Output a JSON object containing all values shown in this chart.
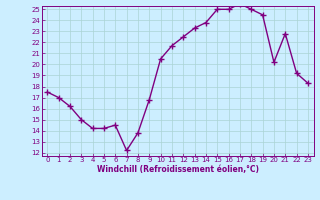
{
  "x": [
    0,
    1,
    2,
    3,
    4,
    5,
    6,
    7,
    8,
    9,
    10,
    11,
    12,
    13,
    14,
    15,
    16,
    17,
    18,
    19,
    20,
    21,
    22,
    23
  ],
  "y": [
    17.5,
    17.0,
    16.2,
    15.0,
    14.2,
    14.2,
    14.5,
    12.2,
    13.8,
    16.8,
    20.5,
    21.7,
    22.5,
    23.3,
    23.8,
    25.0,
    25.0,
    25.5,
    25.0,
    24.5,
    20.2,
    22.8,
    19.2,
    18.3
  ],
  "color": "#800080",
  "bg_color": "#cceeff",
  "grid_color": "#aad4d4",
  "xlabel": "Windchill (Refroidissement éolien,°C)",
  "xlabel_color": "#800080",
  "tick_color": "#800080",
  "spine_color": "#800080",
  "ylim_min": 12,
  "ylim_max": 25,
  "xlim_min": 0,
  "xlim_max": 23,
  "yticks": [
    12,
    13,
    14,
    15,
    16,
    17,
    18,
    19,
    20,
    21,
    22,
    23,
    24,
    25
  ],
  "xticks": [
    0,
    1,
    2,
    3,
    4,
    5,
    6,
    7,
    8,
    9,
    10,
    11,
    12,
    13,
    14,
    15,
    16,
    17,
    18,
    19,
    20,
    21,
    22,
    23
  ],
  "marker": "+",
  "linewidth": 1.0,
  "markersize": 4,
  "markeredgewidth": 1.0,
  "tick_labelsize": 5,
  "xlabel_fontsize": 5.5,
  "xlabel_fontweight": "bold"
}
